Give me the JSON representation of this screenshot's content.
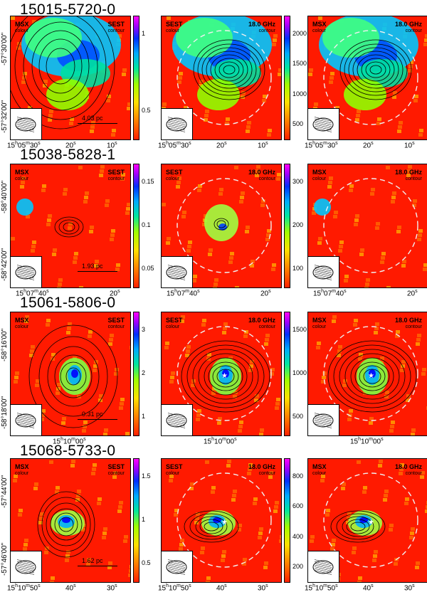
{
  "rows": [
    {
      "title": "15015-5720-0",
      "scale": "4.03 pc",
      "cbar_left": [
        "1",
        "0.5"
      ],
      "cbar_mid": [
        "2000",
        "1500",
        "1000",
        "500"
      ],
      "xticks": [
        "15h05m30s",
        "20s",
        "10s"
      ],
      "yticks": [
        "-57°30'00\"",
        "-57°32'00\""
      ]
    },
    {
      "title": "15038-5828-1",
      "scale": "1.93 pc",
      "cbar_left": [
        "0.15",
        "0.1",
        "0.05"
      ],
      "cbar_mid": [
        "300",
        "200",
        "100"
      ],
      "xticks": [
        "15h07m40s",
        "20s"
      ],
      "yticks": [
        "-58°40'00\"",
        "-58°42'00\""
      ]
    },
    {
      "title": "15061-5806-0",
      "scale": "0.31 pc",
      "cbar_left": [
        "3",
        "2",
        "1"
      ],
      "cbar_mid": [
        "1500",
        "1000",
        "500"
      ],
      "xticks": [
        "15h10m00s"
      ],
      "yticks": [
        "-58°16'00\"",
        "-58°18'00\""
      ]
    },
    {
      "title": "15068-5733-0",
      "scale": "1.62 pc",
      "cbar_left": [
        "1.5",
        "1",
        "0.5"
      ],
      "cbar_mid": [
        "800",
        "600",
        "400",
        "200"
      ],
      "xticks": [
        "15h10m50s",
        "40s",
        "30s"
      ],
      "yticks": [
        "-57°44'00\"",
        "-57°46'00\""
      ]
    }
  ],
  "labels": {
    "msx": "MSX",
    "colour": "colour",
    "sest": "SEST",
    "contour": "contour",
    "freq": "18.0 GHz"
  }
}
